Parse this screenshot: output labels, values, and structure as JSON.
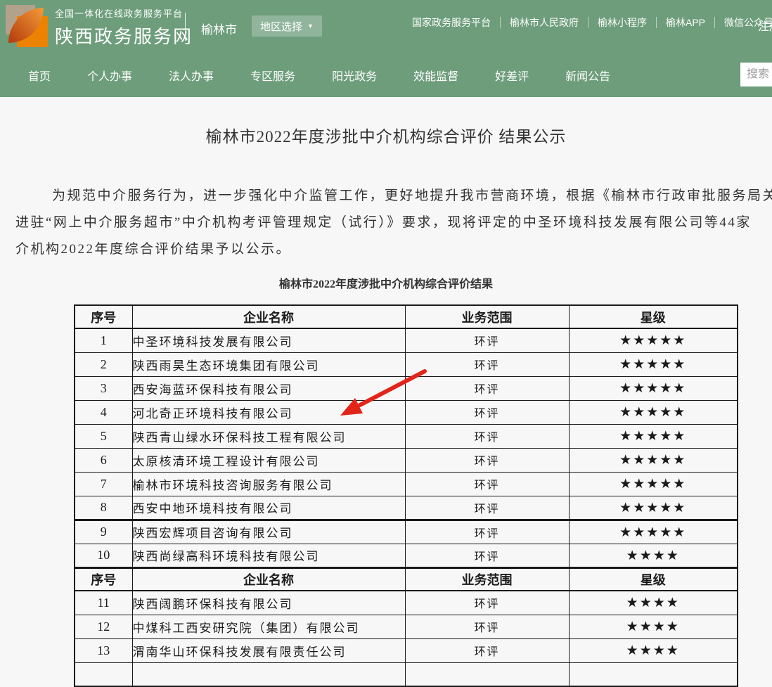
{
  "header": {
    "platform_small": "全国一体化在线政务服务平台",
    "site_name": "陕西政务服务网",
    "city": "榆林市",
    "region_selector_label": "地区选择",
    "links": [
      "国家政务服务平台",
      "榆林市人民政府",
      "榆林小程序",
      "榆林APP",
      "微信公众号"
    ],
    "register_label": "注册"
  },
  "nav": {
    "items": [
      "首页",
      "个人办事",
      "法人办事",
      "专区服务",
      "阳光政务",
      "效能监督",
      "好差评",
      "新闻公告"
    ],
    "search_placeholder": "搜索"
  },
  "article": {
    "title": "榆林市2022年度涉批中介机构综合评价 结果公示",
    "paragraph_lines": [
      "为规范中介服务行为，进一步强化中介监管工作，更好地提升我市营商环境，根据《榆林市行政审批服务局关",
      "进驻“网上中介服务超市”中介机构考评管理规定（试行）》要求，现将评定的中圣环境科技发展有限公司等44家",
      "介机构2022年度综合评价结果予以公示。"
    ],
    "table_caption": "榆林市2022年度涉批中介机构综合评价结果"
  },
  "table": {
    "headers": [
      "序号",
      "企业名称",
      "业务范围",
      "星级"
    ],
    "rows": [
      {
        "type": "header"
      },
      {
        "no": "1",
        "name": "中圣环境科技发展有限公司",
        "scope": "环评",
        "stars": "★★★★★"
      },
      {
        "no": "2",
        "name": "陕西雨昊生态环境集团有限公司",
        "scope": "环评",
        "stars": "★★★★★"
      },
      {
        "no": "3",
        "name": "西安海蓝环保科技有限公司",
        "scope": "环评",
        "stars": "★★★★★"
      },
      {
        "no": "4",
        "name": "河北奇正环境科技有限公司",
        "scope": "环评",
        "stars": "★★★★★"
      },
      {
        "no": "5",
        "name": "陕西青山绿水环保科技工程有限公司",
        "scope": "环评",
        "stars": "★★★★★"
      },
      {
        "no": "6",
        "name": "太原核清环境工程设计有限公司",
        "scope": "环评",
        "stars": "★★★★★"
      },
      {
        "no": "7",
        "name": "榆林市环境科技咨询服务有限公司",
        "scope": "环评",
        "stars": "★★★★★"
      },
      {
        "no": "8",
        "name": "西安中地环境科技有限公司",
        "scope": "环评",
        "stars": "★★★★★"
      },
      {
        "no": "9",
        "name": "陕西宏辉项目咨询有限公司",
        "scope": "环评",
        "stars": "★★★★★",
        "divider_top": true
      },
      {
        "no": "10",
        "name": "陕西尚绿高科环境科技有限公司",
        "scope": "环评",
        "stars": "★★★★"
      },
      {
        "type": "header"
      },
      {
        "no": "11",
        "name": "陕西阔鹏环保科技有限公司",
        "scope": "环评",
        "stars": "★★★★"
      },
      {
        "no": "12",
        "name": "中煤科工西安研究院（集团）有限公司",
        "scope": "环评",
        "stars": "★★★★"
      },
      {
        "no": "13",
        "name": "渭南华山环保科技发展有限责任公司",
        "scope": "环评",
        "stars": "★★★★"
      },
      {
        "type": "partial"
      }
    ]
  },
  "colors": {
    "header_green": "#6d9d7b",
    "logo_orange": "#ec8200",
    "logo_tan": "#b3a28b",
    "star_black": "#1a1a1a",
    "arrow_red": "#e32419"
  },
  "annotation": {
    "arrow_target_row": "4"
  }
}
